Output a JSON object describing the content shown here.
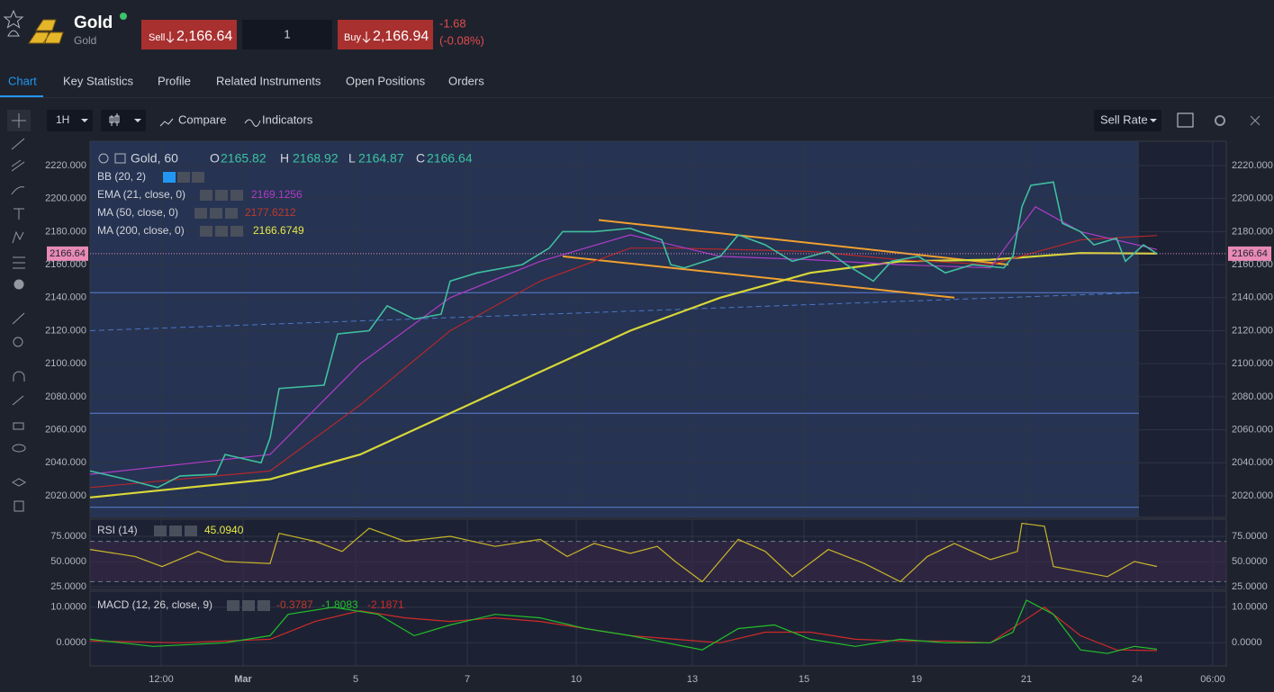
{
  "header": {
    "symbol": "Gold",
    "name": "Gold",
    "sell_label": "Sell",
    "sell_price": "2,166.64",
    "quantity": "1",
    "buy_label": "Buy",
    "buy_price": "2,166.94",
    "change": "-1.68",
    "change_pct": "(-0.08%)"
  },
  "tabs": [
    "Chart",
    "Key Statistics",
    "Profile",
    "Related Instruments",
    "Open Positions",
    "Orders"
  ],
  "toolbar": {
    "interval": "1H",
    "compare": "Compare",
    "indicators": "Indicators",
    "rate": "Sell Rate"
  },
  "chart_data": [
    {
      "type": "line",
      "xlim": [
        0,
        126.2
      ],
      "ylim": [
        2006.9,
        2234.7
      ],
      "xticks": [
        {
          "value": 7.9,
          "label": "12:00"
        },
        {
          "value": 17,
          "label": "Mar"
        },
        {
          "value": 29.5,
          "label": "5"
        },
        {
          "value": 41.9,
          "label": "7"
        },
        {
          "value": 54,
          "label": "10"
        },
        {
          "value": 66.9,
          "label": "13"
        },
        {
          "value": 79.3,
          "label": "15"
        },
        {
          "value": 91.8,
          "label": "19"
        },
        {
          "value": 104,
          "label": "21"
        },
        {
          "value": 116.3,
          "label": "24"
        },
        {
          "value": 124.7,
          "label": "06:00"
        }
      ],
      "yticks": [
        {
          "value": 2020,
          "label": "2020.000"
        },
        {
          "value": 2040,
          "label": "2040.000"
        },
        {
          "value": 2060,
          "label": "2060.000"
        },
        {
          "value": 2080,
          "label": "2080.000"
        },
        {
          "value": 2100,
          "label": "2100.000"
        },
        {
          "value": 2120,
          "label": "2120.000"
        },
        {
          "value": 2140,
          "label": "2140.000"
        },
        {
          "value": 2160,
          "label": "2160.000"
        },
        {
          "value": 2180,
          "label": "2180.000"
        },
        {
          "value": 2200,
          "label": "2200.000"
        },
        {
          "value": 2220,
          "label": "2220.000"
        }
      ],
      "grid": true,
      "legend": {
        "O": "O",
        "open": "2165.82",
        "H": "H",
        "high": "2168.92",
        "L": "L",
        "low": "2164.87",
        "C": "C",
        "close": "2166.64",
        "bb": "BB (20, 2)",
        "ema_value": "2169.1256",
        "ma50_value": "2177.6212",
        "ma200_value": "2166.6749"
      },
      "last_price": {
        "value": 2166.64,
        "label": "2166.64"
      },
      "levels": [
        2143,
        2070,
        2013
      ],
      "level_color": "#5b7fd0",
      "trendlines": [
        {
          "x": [
            56.5,
            102
          ],
          "values": [
            2187,
            2160
          ],
          "color": "#f0a030"
        },
        {
          "x": [
            52.5,
            96
          ],
          "values": [
            2165,
            2140
          ],
          "color": "#f0a030"
        },
        {
          "x": [
            0,
            116.5
          ],
          "values": [
            2120,
            2143
          ],
          "color": "#4a78c8",
          "dashed": true
        }
      ],
      "series": [
        {
          "name": "Gold, 60",
          "color": "#3fbf9f",
          "x": [
            0,
            4,
            7.5,
            10,
            14,
            15,
            19,
            20,
            21,
            26,
            27.5,
            31,
            33,
            36,
            39,
            40,
            43,
            48,
            51,
            52.5,
            56,
            60,
            63.5,
            64.5,
            66,
            70,
            72,
            75,
            78,
            82,
            84,
            87,
            89,
            92,
            95,
            98,
            101.5,
            102.5,
            103.5,
            104.5,
            107,
            108,
            110,
            111.5,
            114,
            115,
            117,
            118.5
          ],
          "values": [
            2035,
            2030,
            2025,
            2032,
            2033,
            2045,
            2040,
            2055,
            2085,
            2087,
            2118,
            2120,
            2135,
            2127,
            2130,
            2150,
            2155,
            2160,
            2170,
            2180,
            2180,
            2182,
            2175,
            2160,
            2158,
            2165,
            2178,
            2172,
            2162,
            2168,
            2160,
            2150,
            2162,
            2165,
            2155,
            2160,
            2158,
            2165,
            2195,
            2208,
            2210,
            2185,
            2180,
            2172,
            2176,
            2162,
            2172,
            2166.64
          ]
        },
        {
          "name": "EMA (21, close, 0)",
          "color": "#b03cc8",
          "x": [
            0,
            20,
            30,
            40,
            50,
            60,
            70,
            80,
            90,
            100,
            105,
            110,
            118.5
          ],
          "values": [
            2033,
            2045,
            2100,
            2140,
            2162,
            2178,
            2165,
            2163,
            2160,
            2158,
            2195,
            2180,
            2169.1256
          ]
        },
        {
          "name": "MA (50, close, 0)",
          "color": "#b3282d",
          "x": [
            0,
            20,
            30,
            40,
            50,
            60,
            65,
            80,
            90,
            100,
            110,
            118.5
          ],
          "values": [
            2025,
            2035,
            2075,
            2120,
            2150,
            2170,
            2170,
            2168,
            2163,
            2160,
            2175,
            2177.6212
          ]
        },
        {
          "name": "MA (200, close, 0)",
          "color": "#d8d838",
          "x": [
            0,
            20,
            30,
            40,
            50,
            60,
            70,
            80,
            90,
            100,
            110,
            118.5
          ],
          "values": [
            2019,
            2030,
            2045,
            2070,
            2095,
            2120,
            2140,
            2155,
            2162,
            2163,
            2167,
            2166.6749
          ]
        }
      ]
    },
    {
      "type": "line",
      "ylim": [
        22.3,
        92
      ],
      "yticks": [
        {
          "value": 25,
          "label": "25.0000"
        },
        {
          "value": 50,
          "label": "50.0000"
        },
        {
          "value": 75,
          "label": "75.0000"
        }
      ],
      "bands": [
        30,
        70
      ],
      "legend": {
        "value": "45.0940"
      },
      "series": [
        {
          "name": "RSI (14)",
          "color": "#c9b52a",
          "x": [
            0,
            5,
            8,
            12,
            15,
            20,
            21,
            25,
            28,
            31,
            35,
            40,
            45,
            50,
            53,
            56,
            60,
            63,
            65,
            68,
            72,
            75,
            78,
            82,
            86,
            90,
            93,
            96,
            100,
            103,
            103.5,
            106,
            107,
            110,
            113,
            116,
            118.5
          ],
          "values": [
            62,
            55,
            45,
            60,
            50,
            48,
            78,
            70,
            60,
            83,
            70,
            75,
            65,
            72,
            55,
            68,
            58,
            65,
            50,
            30,
            72,
            60,
            35,
            62,
            48,
            30,
            55,
            68,
            52,
            60,
            88,
            85,
            45,
            40,
            35,
            50,
            45.09
          ]
        }
      ]
    },
    {
      "type": "line",
      "ylim": [
        -6.5,
        14.5
      ],
      "yticks": [
        {
          "value": 0,
          "label": "0.0000"
        },
        {
          "value": 10,
          "label": "10.0000"
        }
      ],
      "legend": {
        "histogram": "-0.3787",
        "macd": "-1.8083",
        "signal": "-2.1871"
      },
      "series": [
        {
          "name": "MACD (12, 26, close, 9)",
          "color": "#22c02a",
          "x": [
            0,
            7,
            15,
            20,
            22,
            27,
            32,
            36,
            40,
            45,
            50,
            55,
            60,
            64,
            68,
            72,
            76,
            80,
            85,
            90,
            95,
            100,
            102.5,
            104,
            107,
            110,
            113,
            116,
            118.5
          ],
          "values": [
            1,
            -1,
            0,
            2,
            8,
            10,
            8,
            2,
            5,
            8,
            7,
            4,
            2,
            0,
            -2,
            4,
            5,
            1,
            -1,
            1,
            0,
            0,
            3,
            12,
            8,
            -2,
            -3,
            -1,
            -1.81
          ]
        },
        {
          "color": "#d02a2a",
          "x": [
            0,
            10,
            20,
            25,
            30,
            35,
            40,
            45,
            50,
            55,
            60,
            65,
            70,
            75,
            80,
            85,
            90,
            95,
            100,
            103,
            106,
            110,
            114,
            118.5
          ],
          "values": [
            0.5,
            0,
            1,
            6,
            9,
            7,
            6,
            7,
            6,
            4,
            2,
            1,
            0,
            3,
            3,
            1,
            0.5,
            0.5,
            0,
            5,
            10,
            2,
            -2,
            -2.19
          ]
        }
      ]
    }
  ]
}
